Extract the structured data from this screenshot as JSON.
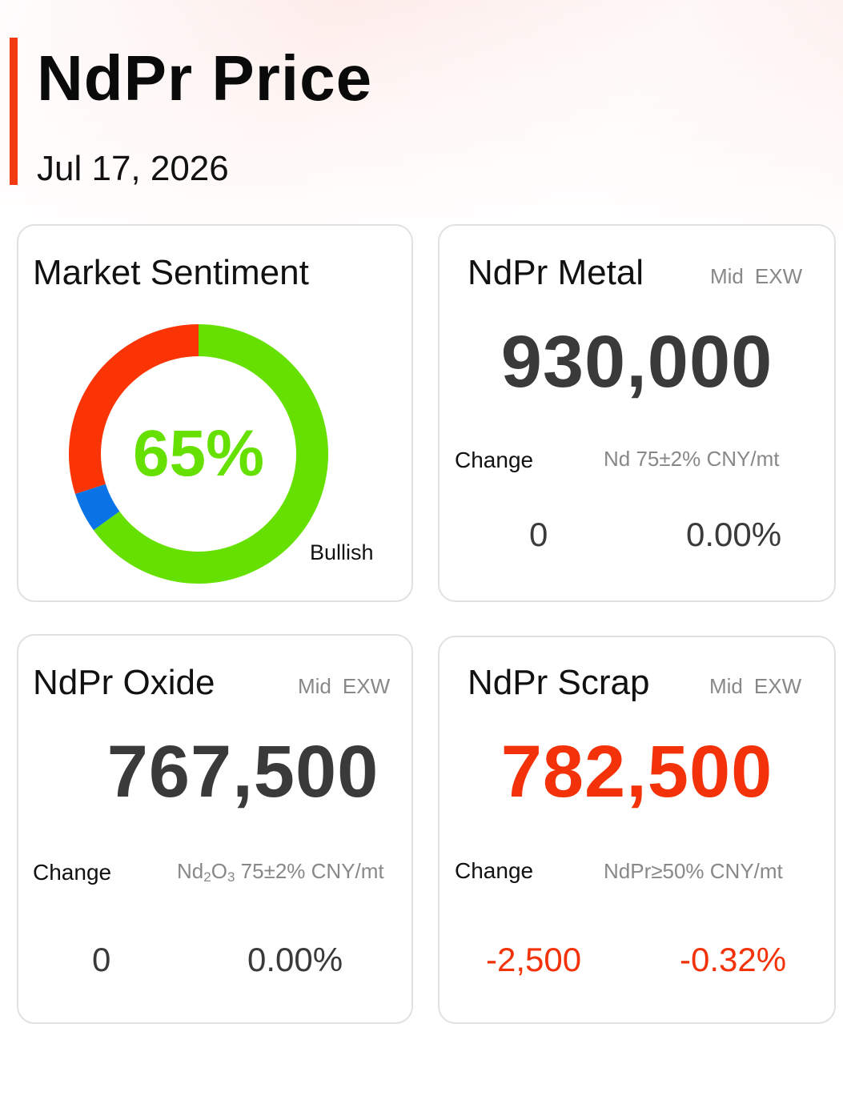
{
  "header": {
    "title": "NdPr Price",
    "date": "Jul 17, 2026"
  },
  "sentiment": {
    "title": "Market Sentiment",
    "percent_text": "65%",
    "label": "Bullish",
    "segments": [
      {
        "name": "bullish",
        "value": 65,
        "color": "#66e000"
      },
      {
        "name": "neutral",
        "value": 5,
        "color": "#0a74e6"
      },
      {
        "name": "bearish",
        "value": 30,
        "color": "#fa3405"
      }
    ]
  },
  "cards": {
    "metal": {
      "title": "NdPr Metal",
      "tag_mid": "Mid",
      "tag_exw": "EXW",
      "price": "930,000",
      "change_label": "Change",
      "spec": "Nd 75±2% CNY/mt",
      "change_abs": "0",
      "change_pct": "0.00%"
    },
    "oxide": {
      "title": "NdPr Oxide",
      "tag_mid": "Mid",
      "tag_exw": "EXW",
      "price": "767,500",
      "change_label": "Change",
      "spec_prefix": "Nd",
      "spec_sub1": "2",
      "spec_mid": "O",
      "spec_sub2": "3",
      "spec_suffix": " 75±2% CNY/mt",
      "change_abs": "0",
      "change_pct": "0.00%"
    },
    "scrap": {
      "title": "NdPr Scrap",
      "tag_mid": "Mid",
      "tag_exw": "EXW",
      "price": "782,500",
      "change_label": "Change",
      "spec": "NdPr≥50% CNY/mt",
      "change_abs": "-2,500",
      "change_pct": "-0.32%"
    }
  },
  "colors": {
    "accent": "#f13a12",
    "negative": "#f43209",
    "bullish": "#66e000",
    "price_neutral": "#3a3a3a"
  }
}
